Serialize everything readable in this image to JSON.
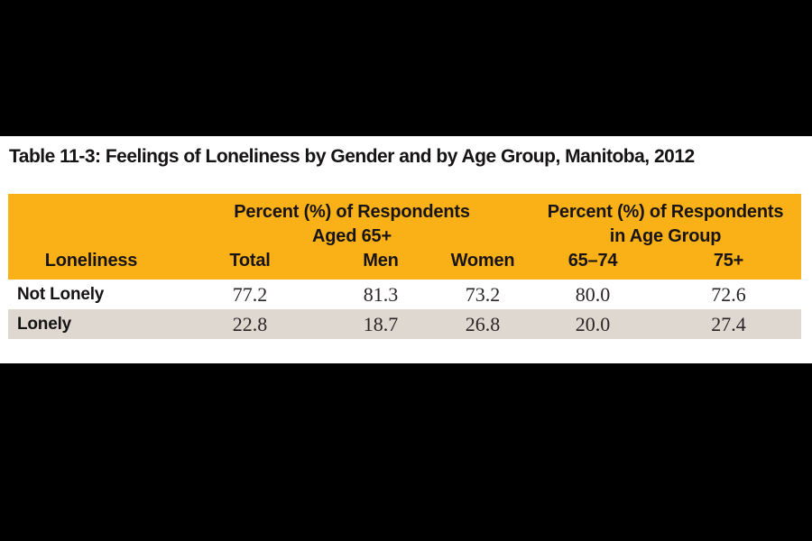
{
  "title": "Table 11-3: Feelings of Loneliness by Gender and by Age Group, Manitoba, 2012",
  "table": {
    "group_headers": [
      {
        "line1": "Percent (%) of Respondents",
        "line2": "Aged 65+"
      },
      {
        "line1": "Percent (%) of Respondents",
        "line2": "in Age Group"
      }
    ],
    "columns": [
      "Loneliness",
      "Total",
      "Men",
      "Women",
      "65–74",
      "75+"
    ],
    "rows": [
      {
        "label": "Not Lonely",
        "values": [
          "77.2",
          "81.3",
          "73.2",
          "80.0",
          "72.6"
        ]
      },
      {
        "label": "Lonely",
        "values": [
          "22.8",
          "18.7",
          "26.8",
          "20.0",
          "27.4"
        ]
      }
    ]
  },
  "colors": {
    "header_background": "#F9B117",
    "alt_row_background": "#DFD8D1",
    "letterbox_band": "#000000",
    "text": "#161314"
  }
}
